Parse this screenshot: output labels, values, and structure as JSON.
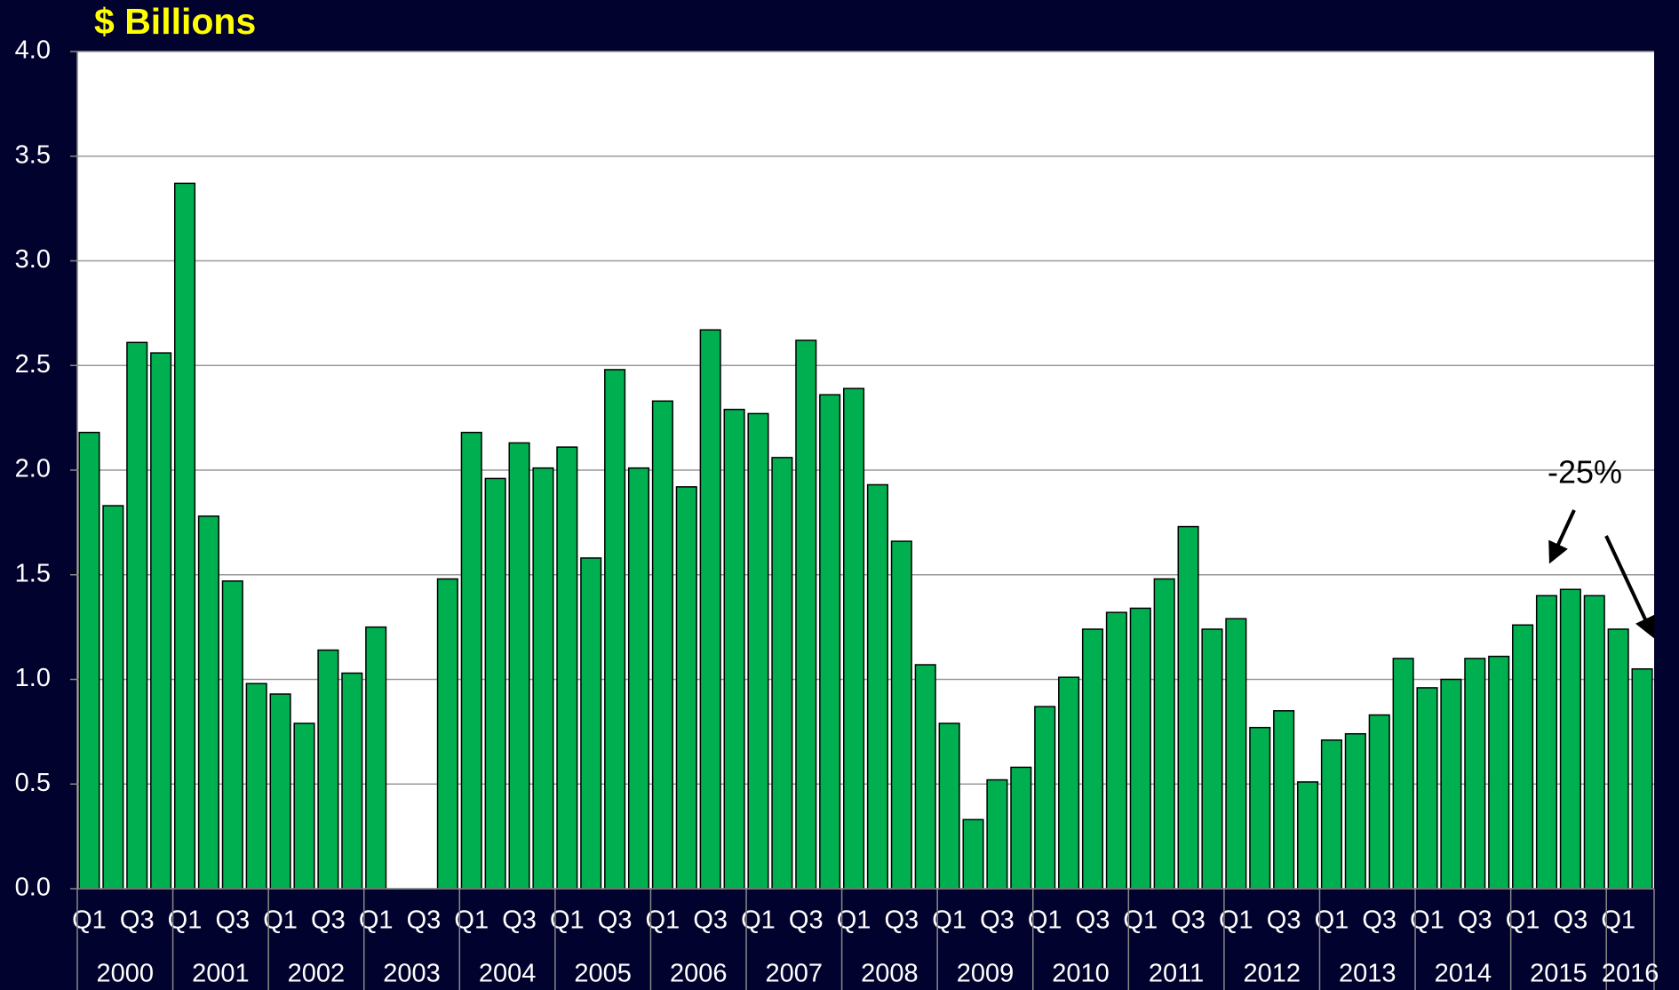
{
  "chart_data": {
    "type": "bar",
    "title": "$ Billions",
    "categories": [
      "Q1",
      null,
      "Q3",
      null,
      "Q1",
      null,
      "Q3",
      null,
      "Q1",
      null,
      "Q3",
      null,
      "Q1",
      null,
      "Q3",
      null,
      "Q1",
      null,
      "Q3",
      null,
      "Q1",
      null,
      "Q3",
      null,
      "Q1",
      null,
      "Q3",
      null,
      "Q1",
      null,
      "Q3",
      null,
      "Q1",
      null,
      "Q3",
      null,
      "Q1",
      null,
      "Q3",
      null,
      "Q1",
      null,
      "Q3",
      null,
      "Q1",
      null,
      "Q3",
      null,
      "Q1",
      null,
      "Q3",
      null,
      "Q1",
      null,
      "Q3",
      null,
      "Q1",
      null,
      "Q3",
      null,
      "Q1",
      null,
      "Q3",
      null,
      "Q1",
      null
    ],
    "years": [
      "2000",
      "2001",
      "2002",
      "2003",
      "2004",
      "2005",
      "2006",
      "2007",
      "2008",
      "2009",
      "2010",
      "2011",
      "2012",
      "2013",
      "2014",
      "2015",
      "2016"
    ],
    "values": [
      2.18,
      1.83,
      2.61,
      2.56,
      3.37,
      1.78,
      1.47,
      0.98,
      0.93,
      0.79,
      1.14,
      1.03,
      1.25,
      0,
      0,
      1.48,
      2.18,
      1.96,
      2.13,
      2.01,
      2.11,
      1.58,
      2.48,
      2.01,
      2.33,
      1.92,
      2.67,
      2.29,
      2.27,
      2.06,
      2.62,
      2.36,
      2.39,
      1.93,
      1.66,
      1.07,
      0.79,
      0.33,
      0.52,
      0.58,
      0.87,
      1.01,
      1.24,
      1.32,
      1.34,
      1.48,
      1.73,
      1.24,
      1.29,
      0.77,
      0.85,
      0.51,
      0.71,
      0.74,
      0.83,
      1.1,
      0.96,
      1.0,
      1.1,
      1.11,
      1.26,
      1.4,
      1.43,
      1.4,
      1.24,
      1.05
    ],
    "color": "#00b050",
    "ylim": [
      0,
      4
    ],
    "yticks": [
      {
        "value": 0,
        "label": "0.0"
      },
      {
        "value": 0.5,
        "label": "0.5"
      },
      {
        "value": 1,
        "label": "1.0"
      },
      {
        "value": 1.5,
        "label": "1.5"
      },
      {
        "value": 2,
        "label": "2.0"
      },
      {
        "value": 2.5,
        "label": "2.5"
      },
      {
        "value": 3,
        "label": "3.0"
      },
      {
        "value": 3.5,
        "label": "3.5"
      },
      {
        "value": 4,
        "label": "4.0"
      }
    ],
    "grid": true,
    "annotation": "-25%"
  }
}
